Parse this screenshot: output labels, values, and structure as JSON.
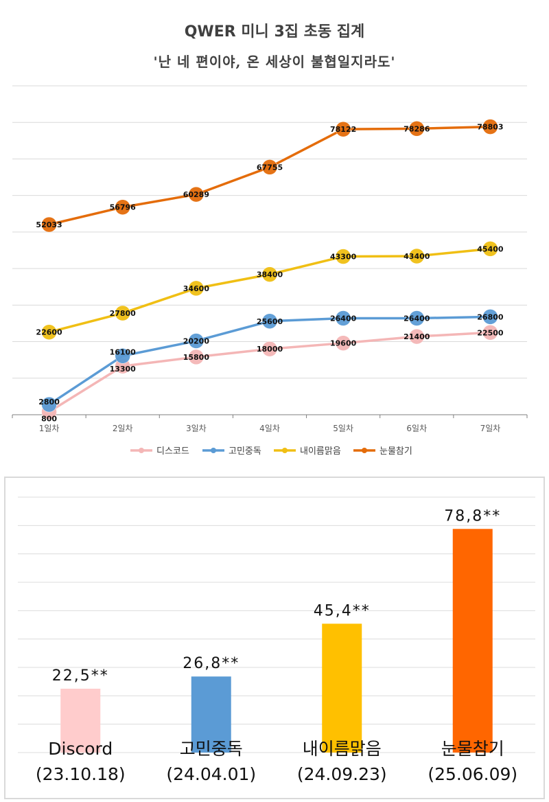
{
  "line_chart": {
    "title": "QWER 미니 3집 초동 집계",
    "subtitle": "'난 네 편이야, 온 세상이 불협일지라도'"
  },
  "bar_chart": {
    "album_labels": [
      "Discord",
      "고민중독",
      "내이름맑음",
      "눈물참기"
    ],
    "release_dates": [
      "(23.10.18)",
      "(24.04.01)",
      "(24.09.23)",
      "(25.06.09)"
    ],
    "value_labels": [
      "22,5**",
      "26,8**",
      "45,4**",
      "78,8**"
    ]
  },
  "chart_data": [
    {
      "type": "line",
      "title": "QWER 미니 3집 초동 집계",
      "subtitle": "'난 네 편이야, 온 세상이 불협일지라도'",
      "x": [
        "1일차",
        "2일차",
        "3일차",
        "4일차",
        "5일차",
        "6일차",
        "7일차"
      ],
      "series": [
        {
          "name": "디스코드",
          "color": "#f4b6b6",
          "values": [
            800,
            13300,
            15800,
            18000,
            19600,
            21400,
            22500
          ]
        },
        {
          "name": "고민중독",
          "color": "#5b9bd5",
          "values": [
            2800,
            16100,
            20200,
            25600,
            26400,
            26400,
            26800
          ]
        },
        {
          "name": "내이름맑음",
          "color": "#f0bf14",
          "values": [
            22600,
            27800,
            34600,
            38400,
            43300,
            43400,
            45400
          ]
        },
        {
          "name": "눈물참기",
          "color": "#e46c0a",
          "values": [
            52033,
            56796,
            60289,
            67755,
            78122,
            78286,
            78803
          ]
        }
      ],
      "ylim": [
        0,
        90000
      ],
      "grid": true,
      "legend": "bottom",
      "data_labels": true
    },
    {
      "type": "bar",
      "categories": [
        "Discord",
        "고민중독",
        "내이름맑음",
        "눈물참기"
      ],
      "values": [
        22500,
        26800,
        45400,
        78800
      ],
      "value_labels": [
        "22,5**",
        "26,8**",
        "45,4**",
        "78,8**"
      ],
      "dates": [
        "(23.10.18)",
        "(24.04.01)",
        "(24.09.23)",
        "(25.06.09)"
      ],
      "colors": [
        "#ffcccc",
        "#5b9bd5",
        "#ffc000",
        "#ff6600"
      ],
      "ylim": [
        0,
        90000
      ],
      "grid": true
    }
  ]
}
